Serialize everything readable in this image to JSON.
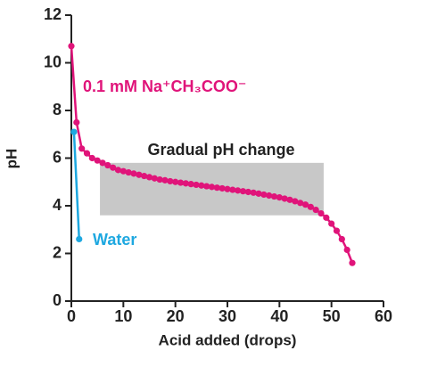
{
  "chart_data": {
    "type": "line",
    "xlabel": "Acid added (drops)",
    "ylabel": "pH",
    "xlim": [
      0,
      60
    ],
    "ylim": [
      0,
      12
    ],
    "xticks": [
      0,
      10,
      20,
      30,
      40,
      50,
      60
    ],
    "yticks": [
      0,
      2,
      4,
      6,
      8,
      10,
      12
    ],
    "series": [
      {
        "name": "0.1 mM Na⁺CH₃COO⁻",
        "color": "#e0147a",
        "x": [
          0,
          1,
          2,
          3,
          4,
          5,
          6,
          7,
          8,
          9,
          10,
          11,
          12,
          13,
          14,
          15,
          16,
          17,
          18,
          19,
          20,
          21,
          22,
          23,
          24,
          25,
          26,
          27,
          28,
          29,
          30,
          31,
          32,
          33,
          34,
          35,
          36,
          37,
          38,
          39,
          40,
          41,
          42,
          43,
          44,
          45,
          46,
          47,
          48,
          49,
          50,
          51,
          52,
          53,
          54
        ],
        "values": [
          10.7,
          7.5,
          6.4,
          6.2,
          6.0,
          5.9,
          5.8,
          5.7,
          5.6,
          5.5,
          5.45,
          5.4,
          5.35,
          5.3,
          5.25,
          5.2,
          5.15,
          5.1,
          5.07,
          5.03,
          5.0,
          4.97,
          4.94,
          4.91,
          4.88,
          4.85,
          4.82,
          4.79,
          4.76,
          4.73,
          4.7,
          4.67,
          4.64,
          4.61,
          4.58,
          4.55,
          4.51,
          4.47,
          4.43,
          4.39,
          4.35,
          4.3,
          4.25,
          4.19,
          4.12,
          4.05,
          3.95,
          3.83,
          3.68,
          3.5,
          3.25,
          2.95,
          2.6,
          2.15,
          1.6
        ]
      },
      {
        "name": "Water",
        "color": "#1ea8e0",
        "x": [
          0.5,
          1.5
        ],
        "values": [
          7.1,
          2.6
        ]
      }
    ],
    "shaded_region": {
      "label": "Gradual pH change",
      "color": "#c8c8c8",
      "xlim": [
        5.5,
        48.5
      ],
      "ylim": [
        3.6,
        5.8
      ]
    }
  }
}
